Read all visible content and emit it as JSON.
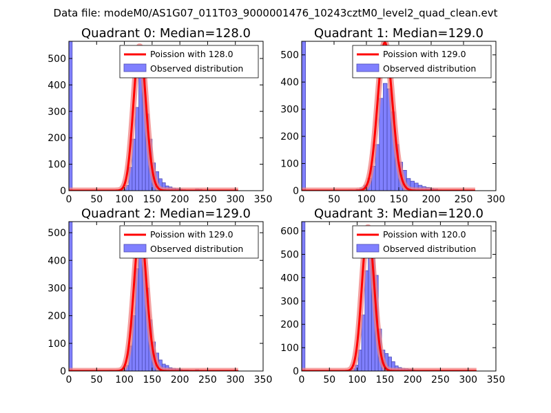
{
  "figure": {
    "suptitle": "Data file: modeM0/AS1G07_011T03_9000001476_10243cztM0_level2_quad_clean.evt"
  },
  "colors": {
    "bar_fill": "#8080ff",
    "bar_edge": "#4c4cb3",
    "poisson_line": "#ff0000",
    "poisson_band": "#f08080"
  },
  "chart_data": [
    {
      "type": "bar",
      "name": "quadrant-0",
      "title": "Quadrant 0: Median=128.0",
      "xlim": [
        0,
        350
      ],
      "ylim": [
        0,
        565
      ],
      "xticks": [
        0,
        50,
        100,
        150,
        200,
        250,
        300,
        350
      ],
      "yticks": [
        0,
        100,
        200,
        300,
        400,
        500
      ],
      "bin_width": 6,
      "median": 128.0,
      "bars": [
        [
          0,
          565
        ],
        [
          96,
          5
        ],
        [
          102,
          20
        ],
        [
          108,
          88
        ],
        [
          114,
          195
        ],
        [
          120,
          315
        ],
        [
          126,
          455
        ],
        [
          132,
          435
        ],
        [
          138,
          290
        ],
        [
          144,
          195
        ],
        [
          150,
          105
        ],
        [
          156,
          72
        ],
        [
          162,
          45
        ],
        [
          168,
          30
        ],
        [
          174,
          18
        ],
        [
          180,
          14
        ],
        [
          186,
          10
        ],
        [
          192,
          8
        ],
        [
          198,
          6
        ],
        [
          204,
          4
        ],
        [
          210,
          3
        ],
        [
          216,
          3
        ],
        [
          228,
          6
        ],
        [
          234,
          5
        ],
        [
          240,
          2
        ],
        [
          252,
          1
        ],
        [
          270,
          1
        ],
        [
          288,
          1
        ]
      ],
      "poisson_x_max": 305,
      "poisson_amplitude": 545,
      "legend": [
        "Poission with 128.0",
        "Observed distribution"
      ]
    },
    {
      "type": "bar",
      "name": "quadrant-1",
      "title": "Quadrant 1: Median=129.0",
      "xlim": [
        0,
        300
      ],
      "ylim": [
        0,
        550
      ],
      "xticks": [
        0,
        50,
        100,
        150,
        200,
        250,
        300
      ],
      "yticks": [
        0,
        100,
        200,
        300,
        400,
        500
      ],
      "bin_width": 6,
      "median": 129.0,
      "bars": [
        [
          0,
          550
        ],
        [
          60,
          2
        ],
        [
          72,
          3
        ],
        [
          84,
          5
        ],
        [
          90,
          10
        ],
        [
          96,
          20
        ],
        [
          102,
          45
        ],
        [
          108,
          90
        ],
        [
          114,
          170
        ],
        [
          120,
          340
        ],
        [
          126,
          395
        ],
        [
          132,
          375
        ],
        [
          138,
          290
        ],
        [
          144,
          170
        ],
        [
          150,
          105
        ],
        [
          156,
          75
        ],
        [
          162,
          45
        ],
        [
          168,
          35
        ],
        [
          174,
          28
        ],
        [
          180,
          20
        ],
        [
          186,
          15
        ],
        [
          192,
          12
        ],
        [
          198,
          8
        ],
        [
          204,
          6
        ],
        [
          210,
          3
        ],
        [
          216,
          2
        ],
        [
          222,
          1
        ],
        [
          234,
          1
        ]
      ],
      "poisson_x_max": 268,
      "poisson_amplitude": 545,
      "legend": [
        "Poission with 129.0",
        "Observed distribution"
      ]
    },
    {
      "type": "bar",
      "name": "quadrant-2",
      "title": "Quadrant 2: Median=129.0",
      "xlim": [
        0,
        350
      ],
      "ylim": [
        0,
        540
      ],
      "xticks": [
        0,
        50,
        100,
        150,
        200,
        250,
        300,
        350
      ],
      "yticks": [
        0,
        100,
        200,
        300,
        400,
        500
      ],
      "bin_width": 6,
      "median": 129.0,
      "bars": [
        [
          0,
          540
        ],
        [
          72,
          3
        ],
        [
          96,
          5
        ],
        [
          102,
          20
        ],
        [
          108,
          90
        ],
        [
          114,
          200
        ],
        [
          120,
          370
        ],
        [
          126,
          500
        ],
        [
          132,
          460
        ],
        [
          138,
          300
        ],
        [
          144,
          185
        ],
        [
          150,
          105
        ],
        [
          156,
          65
        ],
        [
          162,
          40
        ],
        [
          168,
          25
        ],
        [
          174,
          20
        ],
        [
          180,
          12
        ],
        [
          186,
          10
        ],
        [
          192,
          8
        ],
        [
          198,
          6
        ],
        [
          204,
          4
        ],
        [
          210,
          4
        ],
        [
          216,
          3
        ],
        [
          228,
          5
        ],
        [
          234,
          3
        ],
        [
          246,
          1
        ],
        [
          252,
          1
        ],
        [
          258,
          1
        ],
        [
          300,
          1
        ]
      ],
      "poisson_x_max": 305,
      "poisson_amplitude": 515,
      "legend": [
        "Poission with 129.0",
        "Observed distribution"
      ]
    },
    {
      "type": "bar",
      "name": "quadrant-3",
      "title": "Quadrant 3: Median=120.0",
      "xlim": [
        0,
        350
      ],
      "ylim": [
        0,
        640
      ],
      "xticks": [
        0,
        50,
        100,
        150,
        200,
        250,
        300,
        350
      ],
      "yticks": [
        0,
        100,
        200,
        300,
        400,
        500,
        600
      ],
      "bin_width": 6,
      "median": 120.0,
      "bars": [
        [
          0,
          640
        ],
        [
          72,
          3
        ],
        [
          84,
          3
        ],
        [
          90,
          10
        ],
        [
          96,
          25
        ],
        [
          102,
          90
        ],
        [
          108,
          240
        ],
        [
          114,
          430
        ],
        [
          120,
          560
        ],
        [
          126,
          540
        ],
        [
          132,
          410
        ],
        [
          138,
          180
        ],
        [
          144,
          90
        ],
        [
          150,
          75
        ],
        [
          156,
          60
        ],
        [
          162,
          40
        ],
        [
          168,
          22
        ],
        [
          174,
          15
        ],
        [
          180,
          12
        ],
        [
          186,
          10
        ],
        [
          192,
          8
        ],
        [
          198,
          5
        ],
        [
          204,
          3
        ],
        [
          210,
          2
        ],
        [
          240,
          1
        ],
        [
          252,
          1
        ],
        [
          288,
          1
        ]
      ],
      "poisson_x_max": 315,
      "poisson_amplitude": 615,
      "legend": [
        "Poission with 120.0",
        "Observed distribution"
      ]
    }
  ]
}
